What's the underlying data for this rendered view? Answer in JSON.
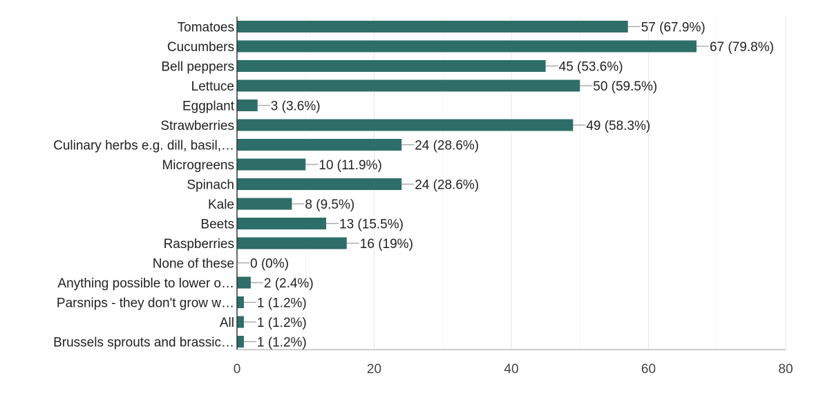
{
  "chart_data": {
    "type": "bar",
    "orientation": "horizontal",
    "title": "",
    "xlabel": "",
    "ylabel": "",
    "xlim": [
      0,
      80
    ],
    "x_ticks": [
      0,
      20,
      40,
      60,
      80
    ],
    "grid": true,
    "bar_color": "#2e6e68",
    "categories": [
      "Tomatoes",
      "Cucumbers",
      "Bell peppers",
      "Lettuce",
      "Eggplant",
      "Strawberries",
      "Culinary herbs e.g. dill, basil,…",
      "Microgreens",
      "Spinach",
      "Kale",
      "Beets",
      "Raspberries",
      "None of these",
      "Anything possible to lower o…",
      "Parsnips - they don't grow w…",
      "All",
      "Brussels sprouts and brassic…"
    ],
    "values": [
      57,
      67,
      45,
      50,
      3,
      49,
      24,
      10,
      24,
      8,
      13,
      16,
      0,
      2,
      1,
      1,
      1
    ],
    "value_labels": [
      "57 (67.9%)",
      "67 (79.8%)",
      "45 (53.6%)",
      "50 (59.5%)",
      "3 (3.6%)",
      "49 (58.3%)",
      "24 (28.6%)",
      "10 (11.9%)",
      "24 (28.6%)",
      "8 (9.5%)",
      "13 (15.5%)",
      "16 (19%)",
      "0 (0%)",
      "2 (2.4%)",
      "1 (1.2%)",
      "1 (1.2%)",
      "1 (1.2%)"
    ]
  }
}
